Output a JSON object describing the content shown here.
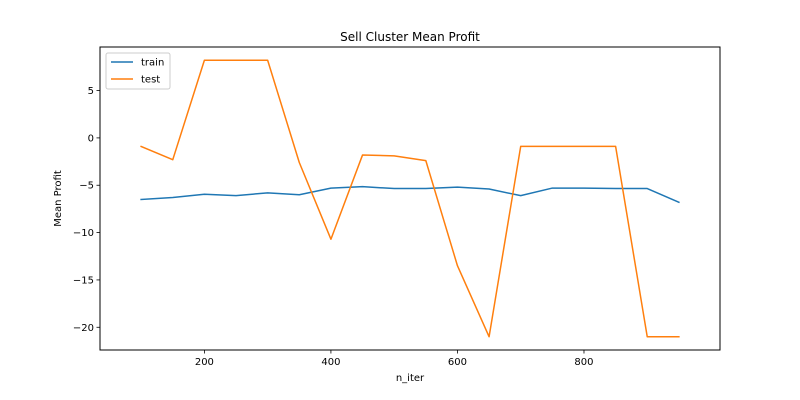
{
  "chart_data": {
    "type": "line",
    "title": "Sell Cluster Mean Profit",
    "xlabel": "n_iter",
    "ylabel": "Mean Profit",
    "x": [
      100,
      150,
      200,
      250,
      300,
      350,
      400,
      450,
      500,
      550,
      600,
      650,
      700,
      750,
      800,
      850,
      900,
      950
    ],
    "xlim": [
      35,
      1015
    ],
    "ylim": [
      -22.4,
      9.6
    ],
    "xticks": [
      200,
      400,
      600,
      800
    ],
    "yticks": [
      5,
      0,
      -5,
      -10,
      -15,
      -20
    ],
    "xtick_labels": [
      "200",
      "400",
      "600",
      "800"
    ],
    "ytick_labels": [
      "5",
      "0",
      "−5",
      "−10",
      "−15",
      "−20"
    ],
    "grid": false,
    "legend_position": "upper-left",
    "series": [
      {
        "name": "train",
        "color": "#1f77b4",
        "values": [
          -6.5,
          -6.3,
          -5.95,
          -6.1,
          -5.8,
          -6.0,
          -5.3,
          -5.15,
          -5.35,
          -5.35,
          -5.2,
          -5.4,
          -6.1,
          -5.3,
          -5.3,
          -5.35,
          -5.35,
          -6.8
        ]
      },
      {
        "name": "test",
        "color": "#ff7f0e",
        "values": [
          -0.9,
          -2.3,
          8.2,
          8.2,
          8.2,
          -2.6,
          -10.7,
          -1.8,
          -1.9,
          -2.4,
          -13.5,
          -21.0,
          -0.9,
          -0.9,
          -0.9,
          -0.9,
          -21.0,
          -21.0
        ]
      }
    ]
  }
}
